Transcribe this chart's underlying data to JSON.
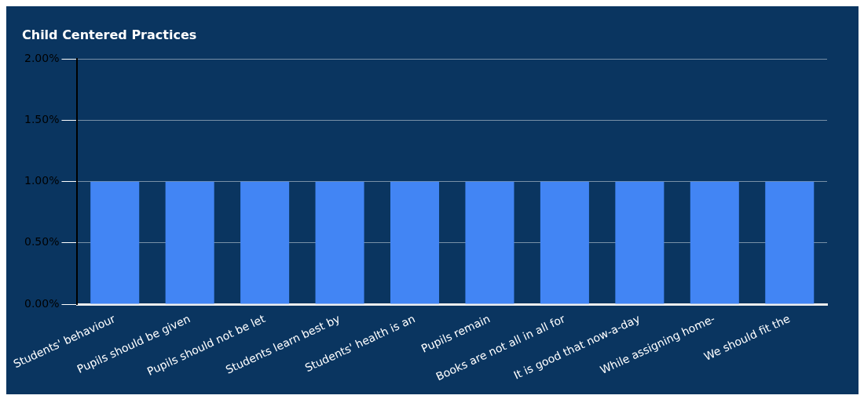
{
  "chart_data": {
    "type": "bar",
    "title": "Child Centered Practices",
    "categories": [
      "Students' behaviour",
      "Pupils should be given",
      "Pupils should not be let",
      "Students learn best by",
      "Students' health is an",
      "Pupils remain",
      "Books are not all in all for",
      "It is good that now-a-day",
      "While assigning home-",
      "We should fit the"
    ],
    "values": [
      1,
      1,
      1,
      1,
      1,
      1,
      1,
      1,
      1,
      1
    ],
    "color": "#4285f4",
    "ylim": [
      0,
      2
    ],
    "yticks": [
      {
        "value": 0,
        "label": "0.00%"
      },
      {
        "value": 0.5,
        "label": "0.50%"
      },
      {
        "value": 1,
        "label": "1.00%"
      },
      {
        "value": 1.5,
        "label": "1.50%"
      },
      {
        "value": 2,
        "label": "2.00%"
      }
    ],
    "grid": "y"
  }
}
